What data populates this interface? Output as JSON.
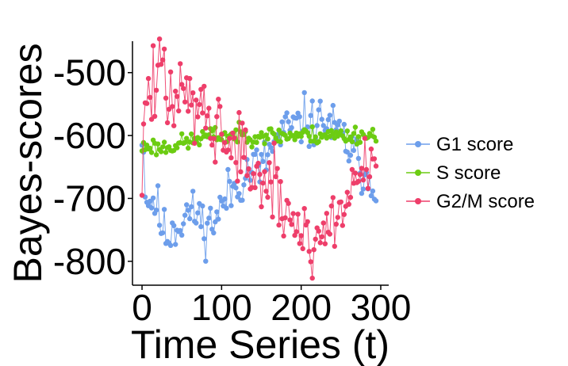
{
  "chart_data": {
    "type": "line",
    "xlabel": "Time Series (t)",
    "ylabel": "Bayes-scores",
    "xlim": [
      -12,
      310
    ],
    "ylim": [
      -838,
      -450
    ],
    "xticks": [
      0,
      100,
      200,
      300
    ],
    "yticks": [
      -500,
      -600,
      -700,
      -800
    ],
    "grid": false,
    "legend_position": "right",
    "markers": true,
    "series": [
      {
        "name": "G1 score",
        "color": "#6d9eeb",
        "anchors": [
          [
            0,
            -590
          ],
          [
            5,
            -695
          ],
          [
            10,
            -705
          ],
          [
            15,
            -700
          ],
          [
            20,
            -720
          ],
          [
            25,
            -745
          ],
          [
            30,
            -760
          ],
          [
            35,
            -755
          ],
          [
            40,
            -740
          ],
          [
            45,
            -745
          ],
          [
            50,
            -735
          ],
          [
            55,
            -725
          ],
          [
            60,
            -720
          ],
          [
            65,
            -730
          ],
          [
            70,
            -720
          ],
          [
            75,
            -740
          ],
          [
            80,
            -745
          ],
          [
            85,
            -740
          ],
          [
            90,
            -735
          ],
          [
            95,
            -725
          ],
          [
            100,
            -715
          ],
          [
            105,
            -700
          ],
          [
            110,
            -690
          ],
          [
            115,
            -685
          ],
          [
            120,
            -680
          ],
          [
            125,
            -670
          ],
          [
            130,
            -660
          ],
          [
            135,
            -655
          ],
          [
            140,
            -645
          ],
          [
            145,
            -650
          ],
          [
            150,
            -655
          ],
          [
            155,
            -640
          ],
          [
            160,
            -625
          ],
          [
            165,
            -615
          ],
          [
            170,
            -610
          ],
          [
            175,
            -600
          ],
          [
            180,
            -595
          ],
          [
            185,
            -590
          ],
          [
            190,
            -585
          ],
          [
            195,
            -590
          ],
          [
            200,
            -580
          ],
          [
            205,
            -575
          ],
          [
            210,
            -580
          ],
          [
            215,
            -585
          ],
          [
            220,
            -570
          ],
          [
            225,
            -580
          ],
          [
            230,
            -575
          ],
          [
            235,
            -580
          ],
          [
            240,
            -590
          ],
          [
            245,
            -600
          ],
          [
            250,
            -600
          ],
          [
            255,
            -610
          ],
          [
            260,
            -620
          ],
          [
            265,
            -630
          ],
          [
            270,
            -640
          ],
          [
            275,
            -650
          ],
          [
            280,
            -660
          ],
          [
            285,
            -665
          ],
          [
            290,
            -670
          ],
          [
            295,
            -670
          ]
        ],
        "noise": 20,
        "seed": 11
      },
      {
        "name": "S score",
        "color": "#6ccc12",
        "anchors": [
          [
            0,
            -620
          ],
          [
            10,
            -615
          ],
          [
            20,
            -620
          ],
          [
            30,
            -618
          ],
          [
            40,
            -615
          ],
          [
            50,
            -612
          ],
          [
            60,
            -610
          ],
          [
            70,
            -605
          ],
          [
            80,
            -602
          ],
          [
            90,
            -600
          ],
          [
            100,
            -600
          ],
          [
            110,
            -600
          ],
          [
            120,
            -598
          ],
          [
            130,
            -600
          ],
          [
            140,
            -600
          ],
          [
            150,
            -598
          ],
          [
            160,
            -600
          ],
          [
            170,
            -600
          ],
          [
            180,
            -600
          ],
          [
            190,
            -600
          ],
          [
            200,
            -598
          ],
          [
            210,
            -600
          ],
          [
            220,
            -600
          ],
          [
            230,
            -598
          ],
          [
            240,
            -600
          ],
          [
            250,
            -600
          ],
          [
            260,
            -600
          ],
          [
            270,
            -598
          ],
          [
            280,
            -600
          ],
          [
            290,
            -600
          ],
          [
            295,
            -600
          ]
        ],
        "noise": 7,
        "seed": 23
      },
      {
        "name": "G2/M score",
        "color": "#ee3e6a",
        "anchors": [
          [
            0,
            -650
          ],
          [
            5,
            -540
          ],
          [
            10,
            -530
          ],
          [
            15,
            -520
          ],
          [
            20,
            -515
          ],
          [
            25,
            -510
          ],
          [
            30,
            -520
          ],
          [
            35,
            -530
          ],
          [
            40,
            -540
          ],
          [
            45,
            -545
          ],
          [
            50,
            -540
          ],
          [
            55,
            -550
          ],
          [
            60,
            -545
          ],
          [
            65,
            -550
          ],
          [
            70,
            -540
          ],
          [
            75,
            -535
          ],
          [
            80,
            -545
          ],
          [
            85,
            -560
          ],
          [
            90,
            -575
          ],
          [
            95,
            -590
          ],
          [
            100,
            -600
          ],
          [
            105,
            -605
          ],
          [
            110,
            -610
          ],
          [
            115,
            -615
          ],
          [
            120,
            -625
          ],
          [
            125,
            -630
          ],
          [
            130,
            -640
          ],
          [
            135,
            -650
          ],
          [
            140,
            -660
          ],
          [
            145,
            -660
          ],
          [
            150,
            -670
          ],
          [
            155,
            -680
          ],
          [
            160,
            -685
          ],
          [
            165,
            -690
          ],
          [
            170,
            -700
          ],
          [
            175,
            -710
          ],
          [
            180,
            -720
          ],
          [
            185,
            -730
          ],
          [
            190,
            -740
          ],
          [
            195,
            -745
          ],
          [
            200,
            -745
          ],
          [
            205,
            -750
          ],
          [
            210,
            -760
          ],
          [
            215,
            -765
          ],
          [
            220,
            -760
          ],
          [
            225,
            -755
          ],
          [
            230,
            -750
          ],
          [
            235,
            -745
          ],
          [
            240,
            -740
          ],
          [
            245,
            -730
          ],
          [
            250,
            -720
          ],
          [
            255,
            -700
          ],
          [
            260,
            -690
          ],
          [
            265,
            -680
          ],
          [
            270,
            -670
          ],
          [
            275,
            -660
          ],
          [
            280,
            -650
          ],
          [
            285,
            -645
          ],
          [
            290,
            -640
          ],
          [
            295,
            -635
          ]
        ],
        "noise": 32,
        "seed": 47
      }
    ]
  }
}
